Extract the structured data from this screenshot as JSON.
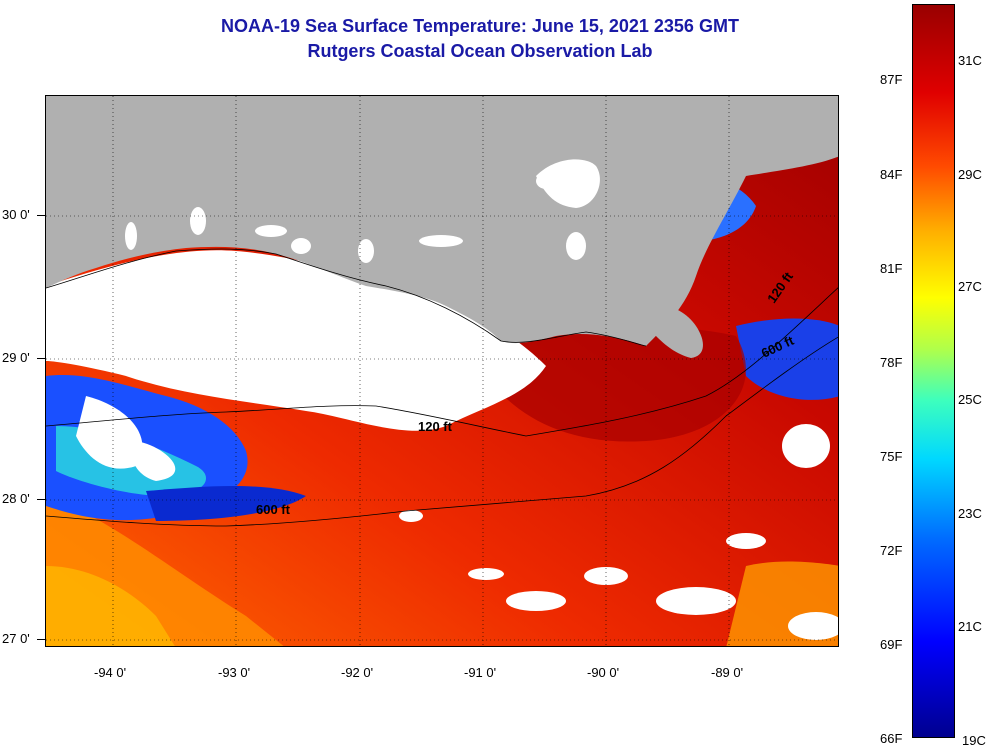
{
  "title": {
    "line1": "NOAA-19 Sea Surface Temperature:  June 15, 2021 2356 GMT",
    "line2": "Rutgers Coastal Ocean Observation Lab"
  },
  "map": {
    "lat_labels": [
      "30 0'",
      "29 0'",
      "28 0'",
      "27 0'"
    ],
    "lon_labels": [
      "-94 0'",
      "-93 0'",
      "-92 0'",
      "-91 0'",
      "-90 0'",
      "-89 0'"
    ],
    "contour_labels": [
      "120 ft",
      "600 ft",
      "120 ft",
      "600 ft"
    ],
    "colors": {
      "land": "#b0b0b0",
      "cloud": "#ffffff",
      "warm": "#e52a00",
      "hot": "#b00000",
      "cool": "#1a50ff"
    }
  },
  "colorbar": {
    "fahrenheit": [
      "87F",
      "84F",
      "81F",
      "78F",
      "75F",
      "72F",
      "69F",
      "66F"
    ],
    "celsius": [
      "31C",
      "29C",
      "27C",
      "25C",
      "23C",
      "21C",
      "19C"
    ]
  }
}
